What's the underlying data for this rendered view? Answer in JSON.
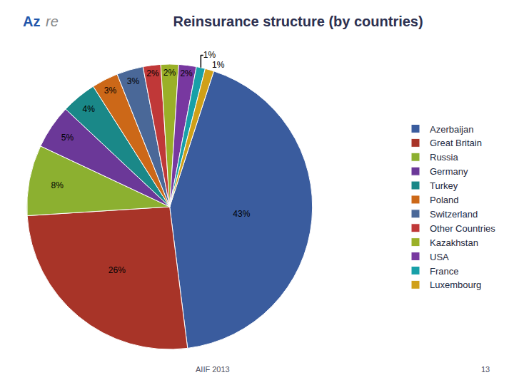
{
  "chart_data": {
    "type": "pie",
    "title": "Reinsurance structure (by countries)",
    "categories": [
      "Azerbaijan",
      "Great Britain",
      "Russia",
      "Germany",
      "Turkey",
      "Poland",
      "Switzerland",
      "Other Countries",
      "Kazakhstan",
      "USA",
      "France",
      "Luxembourg"
    ],
    "values": [
      43,
      26,
      8,
      5,
      4,
      3,
      3,
      2,
      2,
      2,
      1,
      1
    ],
    "value_labels": [
      "43%",
      "26%",
      "8%",
      "5%",
      "4%",
      "3%",
      "3%",
      "2%",
      "2%",
      "2%",
      "1%",
      "1%"
    ],
    "colors": [
      "#3A5C9E",
      "#A83428",
      "#8CB030",
      "#6B3898",
      "#1A8888",
      "#CC6818",
      "#4A6898",
      "#C03838",
      "#9AB028",
      "#7838A0",
      "#18A0A8",
      "#D0A018"
    ],
    "data_labels": true,
    "legend": "right",
    "annotations": [
      "Az",
      "re",
      "AIIF 2013",
      "13"
    ]
  }
}
